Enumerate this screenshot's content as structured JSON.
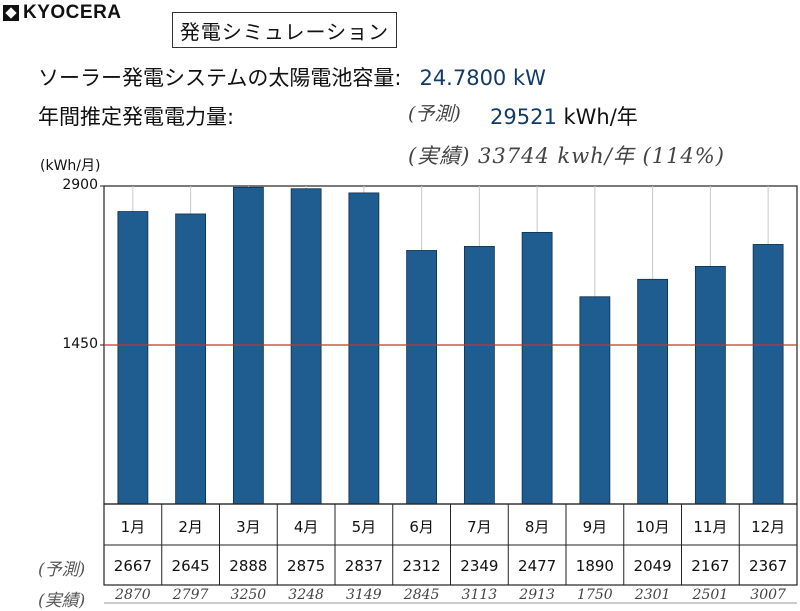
{
  "brand": {
    "logo_text": "KYOCERA"
  },
  "header": {
    "title": "発電シミュレーション",
    "capacity_label": "ソーラー発電システムの太陽電池容量:",
    "capacity_value": "24.7800 kW",
    "annual_label": "年間推定発電電力量:",
    "predicted_hand": "(予測)",
    "predicted_value": "29521",
    "predicted_unit": " kWh/年",
    "actual_hand": "(実績) 33744 kwh/年 (114%)"
  },
  "table": {
    "predicted_row_label": "(予測)",
    "actual_row_label": "(実績)",
    "actual_values": [
      "2870",
      "2797",
      "3250",
      "3248",
      "3149",
      "2845",
      "3113",
      "2913",
      "1750",
      "2301",
      "2501",
      "3007"
    ]
  },
  "chart_data": {
    "type": "bar",
    "categories": [
      "1月",
      "2月",
      "3月",
      "4月",
      "5月",
      "6月",
      "7月",
      "8月",
      "9月",
      "10月",
      "11月",
      "12月"
    ],
    "series": [
      {
        "values": [
          2667,
          2645,
          2888,
          2875,
          2837,
          2312,
          2349,
          2477,
          1890,
          2049,
          2167,
          2367
        ],
        "color": "#1f5c8f"
      }
    ],
    "reference_line": {
      "value": 1450,
      "color": "#c0392b"
    },
    "ylabel": "(kWh/月)",
    "yticks": [
      1450,
      2900
    ],
    "ylim": [
      0,
      2900
    ],
    "grid": "vertical"
  }
}
